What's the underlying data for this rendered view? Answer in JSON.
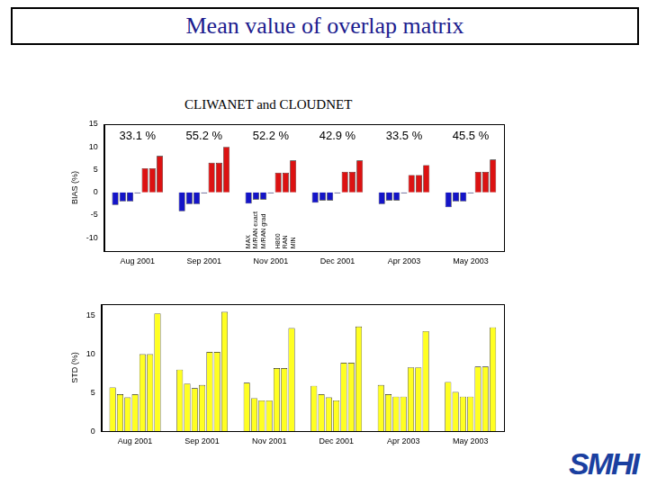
{
  "title": "Mean value of overlap matrix",
  "subtitle": "CLIWANET and CLOUDNET",
  "logo": "SMHI",
  "chart_data": [
    {
      "type": "bar",
      "categories": [
        "Aug 2001",
        "Sep 2001",
        "Nov 2001",
        "Dec 2001",
        "Apr 2003",
        "May 2003"
      ],
      "ylabel": "BIAS (%)",
      "ylim": [
        -13,
        15
      ],
      "yticks": [
        -10,
        -5,
        0,
        5,
        10,
        15
      ],
      "grid": false,
      "annotations": [
        {
          "x": "Aug 2001",
          "text": "33.1 %"
        },
        {
          "x": "Sep 2001",
          "text": "55.2 %"
        },
        {
          "x": "Nov 2001",
          "text": "52.2 %"
        },
        {
          "x": "Dec 2001",
          "text": "42.9 %"
        },
        {
          "x": "Apr 2003",
          "text": "33.5 %"
        },
        {
          "x": "May 2003",
          "text": "45.5 %"
        }
      ],
      "series": [
        {
          "name": "MAX",
          "color": "#1414c8",
          "values": [
            -2.8,
            -4.2,
            -2.5,
            -2.3,
            -2.6,
            -3.3
          ]
        },
        {
          "name": "M/RAN exact",
          "color": "#1414c8",
          "values": [
            -2.0,
            -2.6,
            -1.6,
            -1.8,
            -1.8,
            -2.0
          ]
        },
        {
          "name": "M/RAN grad",
          "color": "#1414c8",
          "values": [
            -2.0,
            -2.6,
            -1.6,
            -1.8,
            -1.8,
            -2.0
          ]
        },
        {
          "name": null,
          "color": "#1414c8",
          "values": [
            -0.2,
            -0.2,
            -0.2,
            -0.2,
            -0.2,
            -0.2
          ]
        },
        {
          "name": "H800",
          "color": "#dc1212",
          "values": [
            5.3,
            6.5,
            4.3,
            4.5,
            3.8,
            4.5
          ]
        },
        {
          "name": "RAN",
          "color": "#dc1212",
          "values": [
            5.3,
            6.5,
            4.3,
            4.5,
            3.8,
            4.5
          ]
        },
        {
          "name": "MIN",
          "color": "#dc1212",
          "values": [
            8.0,
            10.0,
            7.0,
            7.0,
            6.0,
            7.2
          ]
        }
      ]
    },
    {
      "type": "bar",
      "categories": [
        "Aug 2001",
        "Sep 2001",
        "Nov 2001",
        "Dec 2001",
        "Apr 2003",
        "May 2003"
      ],
      "ylabel": "STD (%)",
      "ylim": [
        0,
        16.5
      ],
      "yticks": [
        0,
        5,
        10,
        15
      ],
      "grid": false,
      "color": "#ffff22",
      "series": [
        {
          "values": [
            5.7,
            8.0,
            6.3,
            5.9,
            6.0,
            6.4
          ]
        },
        {
          "values": [
            4.8,
            6.2,
            4.3,
            4.8,
            4.8,
            5.1
          ]
        },
        {
          "values": [
            4.4,
            5.6,
            4.0,
            4.4,
            4.5,
            4.5
          ]
        },
        {
          "values": [
            4.8,
            6.0,
            4.0,
            4.0,
            4.5,
            4.5
          ]
        },
        {
          "values": [
            10.0,
            10.3,
            8.2,
            8.9,
            8.3,
            8.4
          ]
        },
        {
          "values": [
            10.0,
            10.3,
            8.2,
            8.9,
            8.3,
            8.4
          ]
        },
        {
          "values": [
            15.3,
            15.5,
            13.4,
            13.6,
            13.0,
            13.5
          ]
        }
      ]
    }
  ]
}
